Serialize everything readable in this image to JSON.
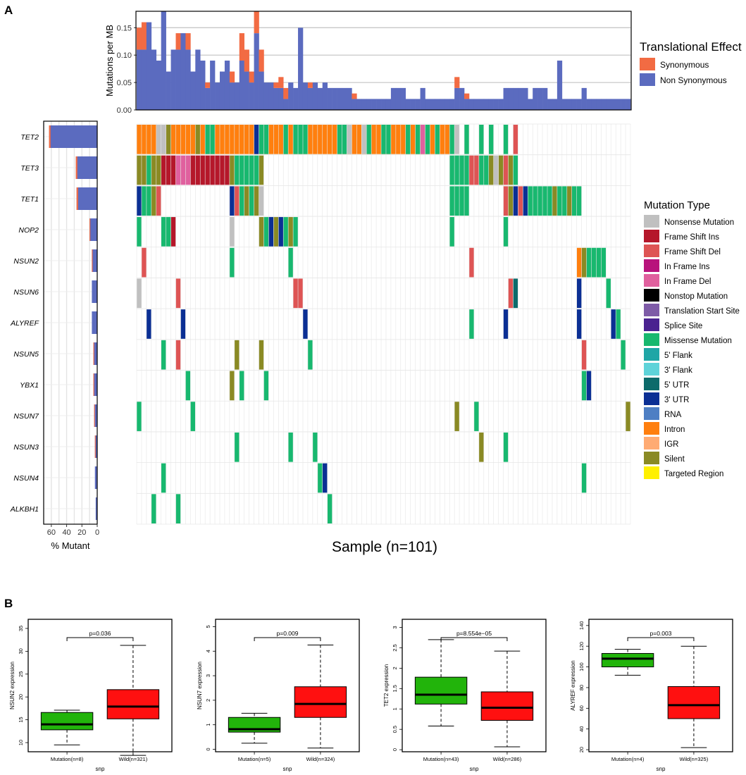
{
  "panel_labels": {
    "a": "A",
    "b": "B"
  },
  "chart_data": [
    {
      "id": "tmb",
      "type": "bar",
      "stacked": true,
      "n_samples": 101,
      "ylabel": "Mutations per MB",
      "ylim": [
        0,
        0.18
      ],
      "yticks": [
        "0.00",
        "0.05",
        "0.10",
        "0.15"
      ],
      "legend": {
        "title": "Translational Effect",
        "entries": [
          "Synonymous",
          "Non Synonymous"
        ],
        "position": "right"
      },
      "series": [
        {
          "name": "Non Synonymous",
          "color": "#5B6BBF",
          "values": [
            0.11,
            0.11,
            0.16,
            0.11,
            0.09,
            0.18,
            0.07,
            0.11,
            0.11,
            0.14,
            0.11,
            0.07,
            0.11,
            0.09,
            0.04,
            0.09,
            0.05,
            0.07,
            0.09,
            0.05,
            0.05,
            0.09,
            0.07,
            0.05,
            0.14,
            0.07,
            0.05,
            0.05,
            0.04,
            0.04,
            0.02,
            0.05,
            0.04,
            0.15,
            0.05,
            0.04,
            0.05,
            0.04,
            0.05,
            0.04,
            0.04,
            0.04,
            0.04,
            0.04,
            0.02,
            0.02,
            0.02,
            0.02,
            0.02,
            0.02,
            0.02,
            0.02,
            0.04,
            0.04,
            0.04,
            0.02,
            0.02,
            0.02,
            0.04,
            0.02,
            0.02,
            0.02,
            0.02,
            0.02,
            0.02,
            0.04,
            0.04,
            0.02,
            0.02,
            0.02,
            0.02,
            0.02,
            0.02,
            0.02,
            0.02,
            0.04,
            0.04,
            0.04,
            0.04,
            0.04,
            0.02,
            0.04,
            0.04,
            0.04,
            0.02,
            0.02,
            0.09,
            0.02,
            0.02,
            0.02,
            0.02,
            0.04,
            0.02,
            0.02,
            0.02,
            0.02,
            0.02,
            0.02,
            0.02,
            0.02,
            0.02
          ]
        },
        {
          "name": "Synonymous",
          "color": "#F26B43",
          "values": [
            0.04,
            0.05,
            0,
            0,
            0,
            0,
            0,
            0,
            0.03,
            0,
            0.03,
            0,
            0,
            0,
            0.01,
            0,
            0,
            0,
            0,
            0.02,
            0,
            0.05,
            0.04,
            0.02,
            0.04,
            0.04,
            0,
            0,
            0.01,
            0.02,
            0.02,
            0,
            0,
            0,
            0,
            0.01,
            0,
            0,
            0,
            0,
            0,
            0,
            0,
            0,
            0.01,
            0,
            0,
            0,
            0,
            0,
            0,
            0,
            0,
            0,
            0,
            0,
            0,
            0,
            0,
            0,
            0,
            0,
            0,
            0,
            0,
            0.02,
            0,
            0.01,
            0,
            0,
            0,
            0,
            0,
            0,
            0,
            0,
            0,
            0,
            0,
            0,
            0,
            0,
            0,
            0,
            0,
            0,
            0,
            0,
            0,
            0,
            0,
            0,
            0,
            0,
            0,
            0,
            0,
            0,
            0,
            0,
            0
          ]
        }
      ]
    },
    {
      "id": "oncoplot",
      "type": "heatmap",
      "xlabel": "Sample (n=101)",
      "genes": [
        "TET2",
        "TET3",
        "TET1",
        "NOP2",
        "NSUN2",
        "NSUN6",
        "ALYREF",
        "NSUN5",
        "YBX1",
        "NSUN7",
        "NSUN3",
        "NSUN4",
        "ALKBH1"
      ],
      "legend": {
        "title": "Mutation Type",
        "position": "right",
        "entries": [
          {
            "label": "Nonsense Mutation",
            "color": "#C0C0C0"
          },
          {
            "label": "Frame Shift Ins",
            "color": "#B5172A"
          },
          {
            "label": "Frame Shift Del",
            "color": "#DE5454"
          },
          {
            "label": "In Frame Ins",
            "color": "#B8137C"
          },
          {
            "label": "In Frame Del",
            "color": "#E0609E"
          },
          {
            "label": "Nonstop Mutation",
            "color": "#000000"
          },
          {
            "label": "Translation Start Site",
            "color": "#7E5BA7"
          },
          {
            "label": "Splice Site",
            "color": "#4A2290"
          },
          {
            "label": "Missense Mutation",
            "color": "#18B86F"
          },
          {
            "label": "5' Flank",
            "color": "#1FA6A6"
          },
          {
            "label": "3' Flank",
            "color": "#5ED3D9"
          },
          {
            "label": "5' UTR",
            "color": "#0C6B6B"
          },
          {
            "label": "3' UTR",
            "color": "#0B2F94"
          },
          {
            "label": "RNA",
            "color": "#4E7FC4"
          },
          {
            "label": "Intron",
            "color": "#FF7F0E"
          },
          {
            "label": "IGR",
            "color": "#FFAB73"
          },
          {
            "label": "Silent",
            "color": "#8A8A24"
          },
          {
            "label": "Targeted Region",
            "color": "#FFF000"
          }
        ]
      },
      "mutations": {
        "TET2": [
          [
            0,
            64,
            14
          ],
          [
            4,
            0
          ],
          [
            5,
            0
          ],
          [
            32,
            35,
            8
          ],
          [
            65,
            0
          ],
          [
            41,
            8
          ],
          [
            42,
            8
          ],
          [
            43,
            0
          ],
          [
            46,
            0
          ],
          [
            47,
            8
          ],
          [
            50,
            8
          ],
          [
            51,
            8
          ],
          [
            55,
            8
          ],
          [
            57,
            8
          ],
          [
            58,
            4
          ],
          [
            59,
            8
          ],
          [
            61,
            8
          ],
          [
            64,
            8
          ],
          [
            67,
            8
          ],
          [
            70,
            8
          ],
          [
            72,
            8
          ],
          [
            75,
            8
          ],
          [
            77,
            2
          ],
          [
            6,
            16
          ],
          [
            12,
            16
          ],
          [
            14,
            8
          ],
          [
            15,
            8
          ],
          [
            24,
            12
          ],
          [
            25,
            8
          ],
          [
            26,
            8
          ],
          [
            30,
            8
          ]
        ],
        "TET3": [
          [
            0,
            2,
            16
          ],
          [
            2,
            3,
            8
          ],
          [
            3,
            5,
            16
          ],
          [
            5,
            8,
            1
          ],
          [
            8,
            11,
            4
          ],
          [
            11,
            15,
            1
          ],
          [
            15,
            19,
            1
          ],
          [
            19,
            20,
            16
          ],
          [
            20,
            21,
            8
          ],
          [
            21,
            23,
            8
          ],
          [
            23,
            25,
            8
          ],
          [
            25,
            26,
            16
          ],
          [
            64,
            68,
            8
          ],
          [
            68,
            70,
            2
          ],
          [
            70,
            72,
            8
          ],
          [
            72,
            73,
            16
          ],
          [
            73,
            74,
            0
          ],
          [
            74,
            75,
            16
          ],
          [
            75,
            76,
            2
          ],
          [
            76,
            77,
            16
          ],
          [
            77,
            78,
            8
          ]
        ],
        "TET1": [
          [
            0,
            1,
            12
          ],
          [
            1,
            3,
            8
          ],
          [
            3,
            4,
            16
          ],
          [
            4,
            5,
            2
          ],
          [
            19,
            20,
            12
          ],
          [
            20,
            21,
            2
          ],
          [
            21,
            22,
            8
          ],
          [
            22,
            23,
            16
          ],
          [
            23,
            24,
            8
          ],
          [
            24,
            25,
            16
          ],
          [
            25,
            26,
            0
          ],
          [
            64,
            68,
            8
          ],
          [
            75,
            76,
            2
          ],
          [
            76,
            77,
            16
          ],
          [
            77,
            78,
            12
          ],
          [
            78,
            79,
            2
          ],
          [
            79,
            80,
            12
          ],
          [
            80,
            85,
            8
          ],
          [
            85,
            86,
            16
          ],
          [
            86,
            87,
            8
          ],
          [
            87,
            88,
            8
          ],
          [
            88,
            89,
            16
          ],
          [
            89,
            90,
            8
          ],
          [
            90,
            91,
            8
          ]
        ],
        "NOP2": [
          [
            0,
            1,
            8
          ],
          [
            5,
            7,
            8
          ],
          [
            7,
            8,
            1
          ],
          [
            19,
            20,
            0
          ],
          [
            25,
            26,
            16
          ],
          [
            26,
            27,
            8
          ],
          [
            27,
            28,
            12
          ],
          [
            28,
            29,
            16
          ],
          [
            29,
            30,
            12
          ],
          [
            30,
            31,
            8
          ],
          [
            31,
            32,
            16
          ],
          [
            32,
            33,
            8
          ],
          [
            64,
            65,
            8
          ],
          [
            75,
            76,
            8
          ]
        ],
        "NSUN2": [
          [
            1,
            2,
            2
          ],
          [
            19,
            20,
            8
          ],
          [
            31,
            32,
            8
          ],
          [
            68,
            69,
            2
          ],
          [
            90,
            91,
            14
          ],
          [
            91,
            92,
            16
          ],
          [
            92,
            94,
            8
          ],
          [
            94,
            96,
            8
          ]
        ],
        "NSUN6": [
          [
            0,
            1,
            0
          ],
          [
            8,
            9,
            2
          ],
          [
            32,
            34,
            2
          ],
          [
            76,
            77,
            2
          ],
          [
            77,
            78,
            11
          ],
          [
            90,
            91,
            12
          ],
          [
            96,
            97,
            8
          ]
        ],
        "ALYREF": [
          [
            2,
            3,
            12
          ],
          [
            9,
            10,
            12
          ],
          [
            34,
            35,
            12
          ],
          [
            68,
            69,
            8
          ],
          [
            75,
            76,
            12
          ],
          [
            90,
            91,
            12
          ],
          [
            97,
            98,
            12
          ],
          [
            98,
            99,
            8
          ]
        ],
        "NSUN5": [
          [
            5,
            6,
            8
          ],
          [
            8,
            9,
            2
          ],
          [
            20,
            21,
            16
          ],
          [
            25,
            26,
            16
          ],
          [
            35,
            36,
            8
          ],
          [
            91,
            92,
            2
          ],
          [
            99,
            100,
            8
          ]
        ],
        "YBX1": [
          [
            10,
            11,
            8
          ],
          [
            19,
            20,
            16
          ],
          [
            21,
            22,
            8
          ],
          [
            26,
            27,
            8
          ],
          [
            91,
            92,
            8
          ],
          [
            92,
            93,
            12
          ]
        ],
        "NSUN7": [
          [
            0,
            1,
            8
          ],
          [
            11,
            12,
            8
          ],
          [
            65,
            66,
            16
          ],
          [
            69,
            70,
            8
          ],
          [
            100,
            101,
            16
          ]
        ],
        "NSUN3": [
          [
            20,
            21,
            8
          ],
          [
            31,
            32,
            8
          ],
          [
            36,
            37,
            8
          ],
          [
            70,
            71,
            16
          ],
          [
            75,
            76,
            8
          ]
        ],
        "NSUN4": [
          [
            5,
            6,
            8
          ],
          [
            37,
            38,
            8
          ],
          [
            38,
            39,
            12
          ],
          [
            91,
            92,
            8
          ]
        ],
        "ALKBH1": [
          [
            3,
            4,
            8
          ],
          [
            8,
            9,
            8
          ],
          [
            39,
            40,
            8
          ]
        ]
      }
    },
    {
      "id": "pct_mutant",
      "type": "bar",
      "orientation": "horizontal",
      "xlabel": "% Mutant",
      "xticks": [
        "60",
        "40",
        "20",
        "0"
      ],
      "xlim": [
        0,
        70
      ],
      "values": [
        63,
        28,
        27,
        10,
        7,
        7,
        7,
        5,
        5,
        4,
        3,
        3,
        2
      ],
      "synonymous_portion": [
        2,
        2,
        2,
        1,
        1,
        0,
        0,
        1,
        1,
        1,
        1,
        0,
        0
      ]
    },
    {
      "id": "box_nsun2",
      "type": "box",
      "ylabel": "NSUN2 expression",
      "xlabel": "snp",
      "ylim": [
        8,
        37
      ],
      "yticks": [
        10,
        15,
        20,
        25,
        30,
        35
      ],
      "categories": [
        "Mutation(n=8)",
        "Wild(n=321)"
      ],
      "boxes": [
        {
          "min": 9.5,
          "q1": 12.8,
          "med": 14,
          "q3": 16.6,
          "max": 17.1
        },
        {
          "min": 7.2,
          "q1": 15.2,
          "med": 17.9,
          "q3": 21.6,
          "max": 31.3
        }
      ],
      "pvalue": "p=0.036"
    },
    {
      "id": "box_nsun7",
      "type": "box",
      "ylabel": "NSUN7 expression",
      "xlabel": "snp",
      "ylim": [
        -0.1,
        5.3
      ],
      "yticks": [
        0,
        1,
        2,
        3,
        4,
        5
      ],
      "categories": [
        "Mutation(n=5)",
        "Wild(n=324)"
      ],
      "boxes": [
        {
          "min": 0.25,
          "q1": 0.7,
          "med": 0.82,
          "q3": 1.3,
          "max": 1.47
        },
        {
          "min": 0.05,
          "q1": 1.3,
          "med": 1.85,
          "q3": 2.55,
          "max": 4.25
        }
      ],
      "pvalue": "p=0.009"
    },
    {
      "id": "box_tet2",
      "type": "box",
      "ylabel": "TET2 expression",
      "xlabel": "snp",
      "ylim": [
        -0.05,
        3.2
      ],
      "yticks": [
        0.0,
        0.5,
        1.0,
        1.5,
        2.0,
        2.5,
        3.0
      ],
      "categories": [
        "Mutation(n=43)",
        "Wild(n=286)"
      ],
      "boxes": [
        {
          "min": 0.58,
          "q1": 1.12,
          "med": 1.35,
          "q3": 1.78,
          "max": 2.7
        },
        {
          "min": 0.07,
          "q1": 0.72,
          "med": 1.03,
          "q3": 1.42,
          "max": 2.42
        }
      ],
      "pvalue": "p=8.554e−05"
    },
    {
      "id": "box_alyref",
      "type": "box",
      "ylabel": "ALYREF expression",
      "xlabel": "snp",
      "ylim": [
        18,
        146
      ],
      "yticks": [
        20,
        40,
        60,
        80,
        100,
        120,
        140
      ],
      "categories": [
        "Mutation(n=4)",
        "Wild(n=325)"
      ],
      "boxes": [
        {
          "min": 92,
          "q1": 100,
          "med": 108,
          "q3": 113,
          "max": 117
        },
        {
          "min": 22,
          "q1": 50,
          "med": 63,
          "q3": 81,
          "max": 120
        }
      ],
      "pvalue": "p=0.003"
    }
  ]
}
